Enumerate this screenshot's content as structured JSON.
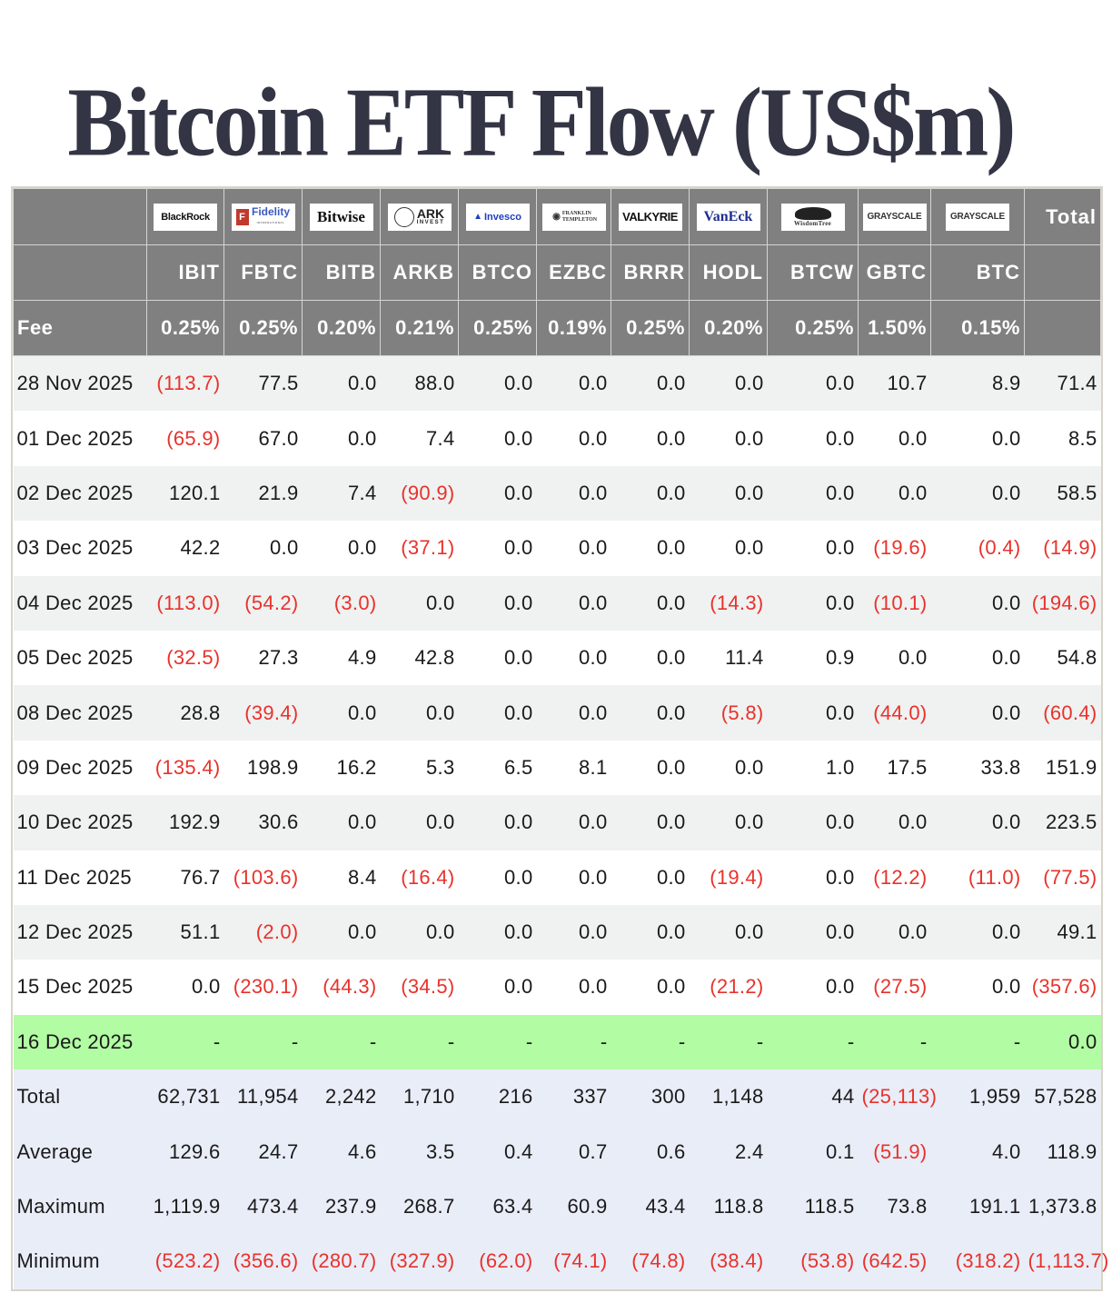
{
  "title": "Bitcoin ETF Flow (US$m)",
  "colors": {
    "header_bg": "#808080",
    "negative": "#e8322b",
    "highlight_row": "#b2fca4",
    "summary_bg": "#e9edf8",
    "stripe": "#f0f1f1",
    "title": "#333444"
  },
  "header": {
    "issuers": [
      {
        "name": "BlackRock",
        "logo": "blackrock-logo"
      },
      {
        "name": "Fidelity",
        "logo": "fidelity-logo",
        "sub": "INTERNATIONAL"
      },
      {
        "name": "Bitwise",
        "logo": "bitwise-logo"
      },
      {
        "name": "ARK",
        "logo": "ark-invest-logo",
        "sub": "INVEST"
      },
      {
        "name": "Invesco",
        "logo": "invesco-logo"
      },
      {
        "name": "FRANKLIN TEMPLETON",
        "logo": "franklin-templeton-logo"
      },
      {
        "name": "VALKYRIE",
        "logo": "valkyrie-logo"
      },
      {
        "name": "VanEck",
        "logo": "vaneck-logo"
      },
      {
        "name": "WisdomTree",
        "logo": "wisdomtree-logo"
      },
      {
        "name": "GRAYSCALE",
        "logo": "grayscale-logo"
      },
      {
        "name": "GRAYSCALE",
        "logo": "grayscale-logo"
      }
    ],
    "total_label": "Total",
    "tickers": [
      "IBIT",
      "FBTC",
      "BITB",
      "ARKB",
      "BTCO",
      "EZBC",
      "BRRR",
      "HODL",
      "BTCW",
      "GBTC",
      "BTC"
    ],
    "fee_label": "Fee",
    "fees": [
      "0.25%",
      "0.25%",
      "0.20%",
      "0.21%",
      "0.25%",
      "0.19%",
      "0.25%",
      "0.20%",
      "0.25%",
      "1.50%",
      "0.15%"
    ]
  },
  "rows": [
    {
      "date": "28 Nov 2025",
      "values": [
        "(113.7)",
        "77.5",
        "0.0",
        "88.0",
        "0.0",
        "0.0",
        "0.0",
        "0.0",
        "0.0",
        "10.7",
        "8.9",
        "71.4"
      ]
    },
    {
      "date": "01 Dec 2025",
      "values": [
        "(65.9)",
        "67.0",
        "0.0",
        "7.4",
        "0.0",
        "0.0",
        "0.0",
        "0.0",
        "0.0",
        "0.0",
        "0.0",
        "8.5"
      ]
    },
    {
      "date": "02 Dec 2025",
      "values": [
        "120.1",
        "21.9",
        "7.4",
        "(90.9)",
        "0.0",
        "0.0",
        "0.0",
        "0.0",
        "0.0",
        "0.0",
        "0.0",
        "58.5"
      ]
    },
    {
      "date": "03 Dec 2025",
      "values": [
        "42.2",
        "0.0",
        "0.0",
        "(37.1)",
        "0.0",
        "0.0",
        "0.0",
        "0.0",
        "0.0",
        "(19.6)",
        "(0.4)",
        "(14.9)"
      ]
    },
    {
      "date": "04 Dec 2025",
      "values": [
        "(113.0)",
        "(54.2)",
        "(3.0)",
        "0.0",
        "0.0",
        "0.0",
        "0.0",
        "(14.3)",
        "0.0",
        "(10.1)",
        "0.0",
        "(194.6)"
      ]
    },
    {
      "date": "05 Dec 2025",
      "values": [
        "(32.5)",
        "27.3",
        "4.9",
        "42.8",
        "0.0",
        "0.0",
        "0.0",
        "11.4",
        "0.9",
        "0.0",
        "0.0",
        "54.8"
      ]
    },
    {
      "date": "08 Dec 2025",
      "values": [
        "28.8",
        "(39.4)",
        "0.0",
        "0.0",
        "0.0",
        "0.0",
        "0.0",
        "(5.8)",
        "0.0",
        "(44.0)",
        "0.0",
        "(60.4)"
      ]
    },
    {
      "date": "09 Dec 2025",
      "values": [
        "(135.4)",
        "198.9",
        "16.2",
        "5.3",
        "6.5",
        "8.1",
        "0.0",
        "0.0",
        "1.0",
        "17.5",
        "33.8",
        "151.9"
      ]
    },
    {
      "date": "10 Dec 2025",
      "values": [
        "192.9",
        "30.6",
        "0.0",
        "0.0",
        "0.0",
        "0.0",
        "0.0",
        "0.0",
        "0.0",
        "0.0",
        "0.0",
        "223.5"
      ]
    },
    {
      "date": "11 Dec 2025",
      "values": [
        "76.7",
        "(103.6)",
        "8.4",
        "(16.4)",
        "0.0",
        "0.0",
        "0.0",
        "(19.4)",
        "0.0",
        "(12.2)",
        "(11.0)",
        "(77.5)"
      ]
    },
    {
      "date": "12 Dec 2025",
      "values": [
        "51.1",
        "(2.0)",
        "0.0",
        "0.0",
        "0.0",
        "0.0",
        "0.0",
        "0.0",
        "0.0",
        "0.0",
        "0.0",
        "49.1"
      ]
    },
    {
      "date": "15 Dec 2025",
      "values": [
        "0.0",
        "(230.1)",
        "(44.3)",
        "(34.5)",
        "0.0",
        "0.0",
        "0.0",
        "(21.2)",
        "0.0",
        "(27.5)",
        "0.0",
        "(357.6)"
      ]
    },
    {
      "date": "16 Dec 2025",
      "highlight": true,
      "values": [
        "-",
        "-",
        "-",
        "-",
        "-",
        "-",
        "-",
        "-",
        "-",
        "-",
        "-",
        "0.0"
      ]
    }
  ],
  "summary": [
    {
      "label": "Total",
      "values": [
        "62,731",
        "11,954",
        "2,242",
        "1,710",
        "216",
        "337",
        "300",
        "1,148",
        "44",
        "(25,113)",
        "1,959",
        "57,528"
      ]
    },
    {
      "label": "Average",
      "values": [
        "129.6",
        "24.7",
        "4.6",
        "3.5",
        "0.4",
        "0.7",
        "0.6",
        "2.4",
        "0.1",
        "(51.9)",
        "4.0",
        "118.9"
      ]
    },
    {
      "label": "Maximum",
      "values": [
        "1,119.9",
        "473.4",
        "237.9",
        "268.7",
        "63.4",
        "60.9",
        "43.4",
        "118.8",
        "118.5",
        "73.8",
        "191.1",
        "1,373.8"
      ]
    },
    {
      "label": "Minimum",
      "values": [
        "(523.2)",
        "(356.6)",
        "(280.7)",
        "(327.9)",
        "(62.0)",
        "(74.1)",
        "(74.8)",
        "(38.4)",
        "(53.8)",
        "(642.5)",
        "(318.2)",
        "(1,113.7)"
      ]
    }
  ]
}
